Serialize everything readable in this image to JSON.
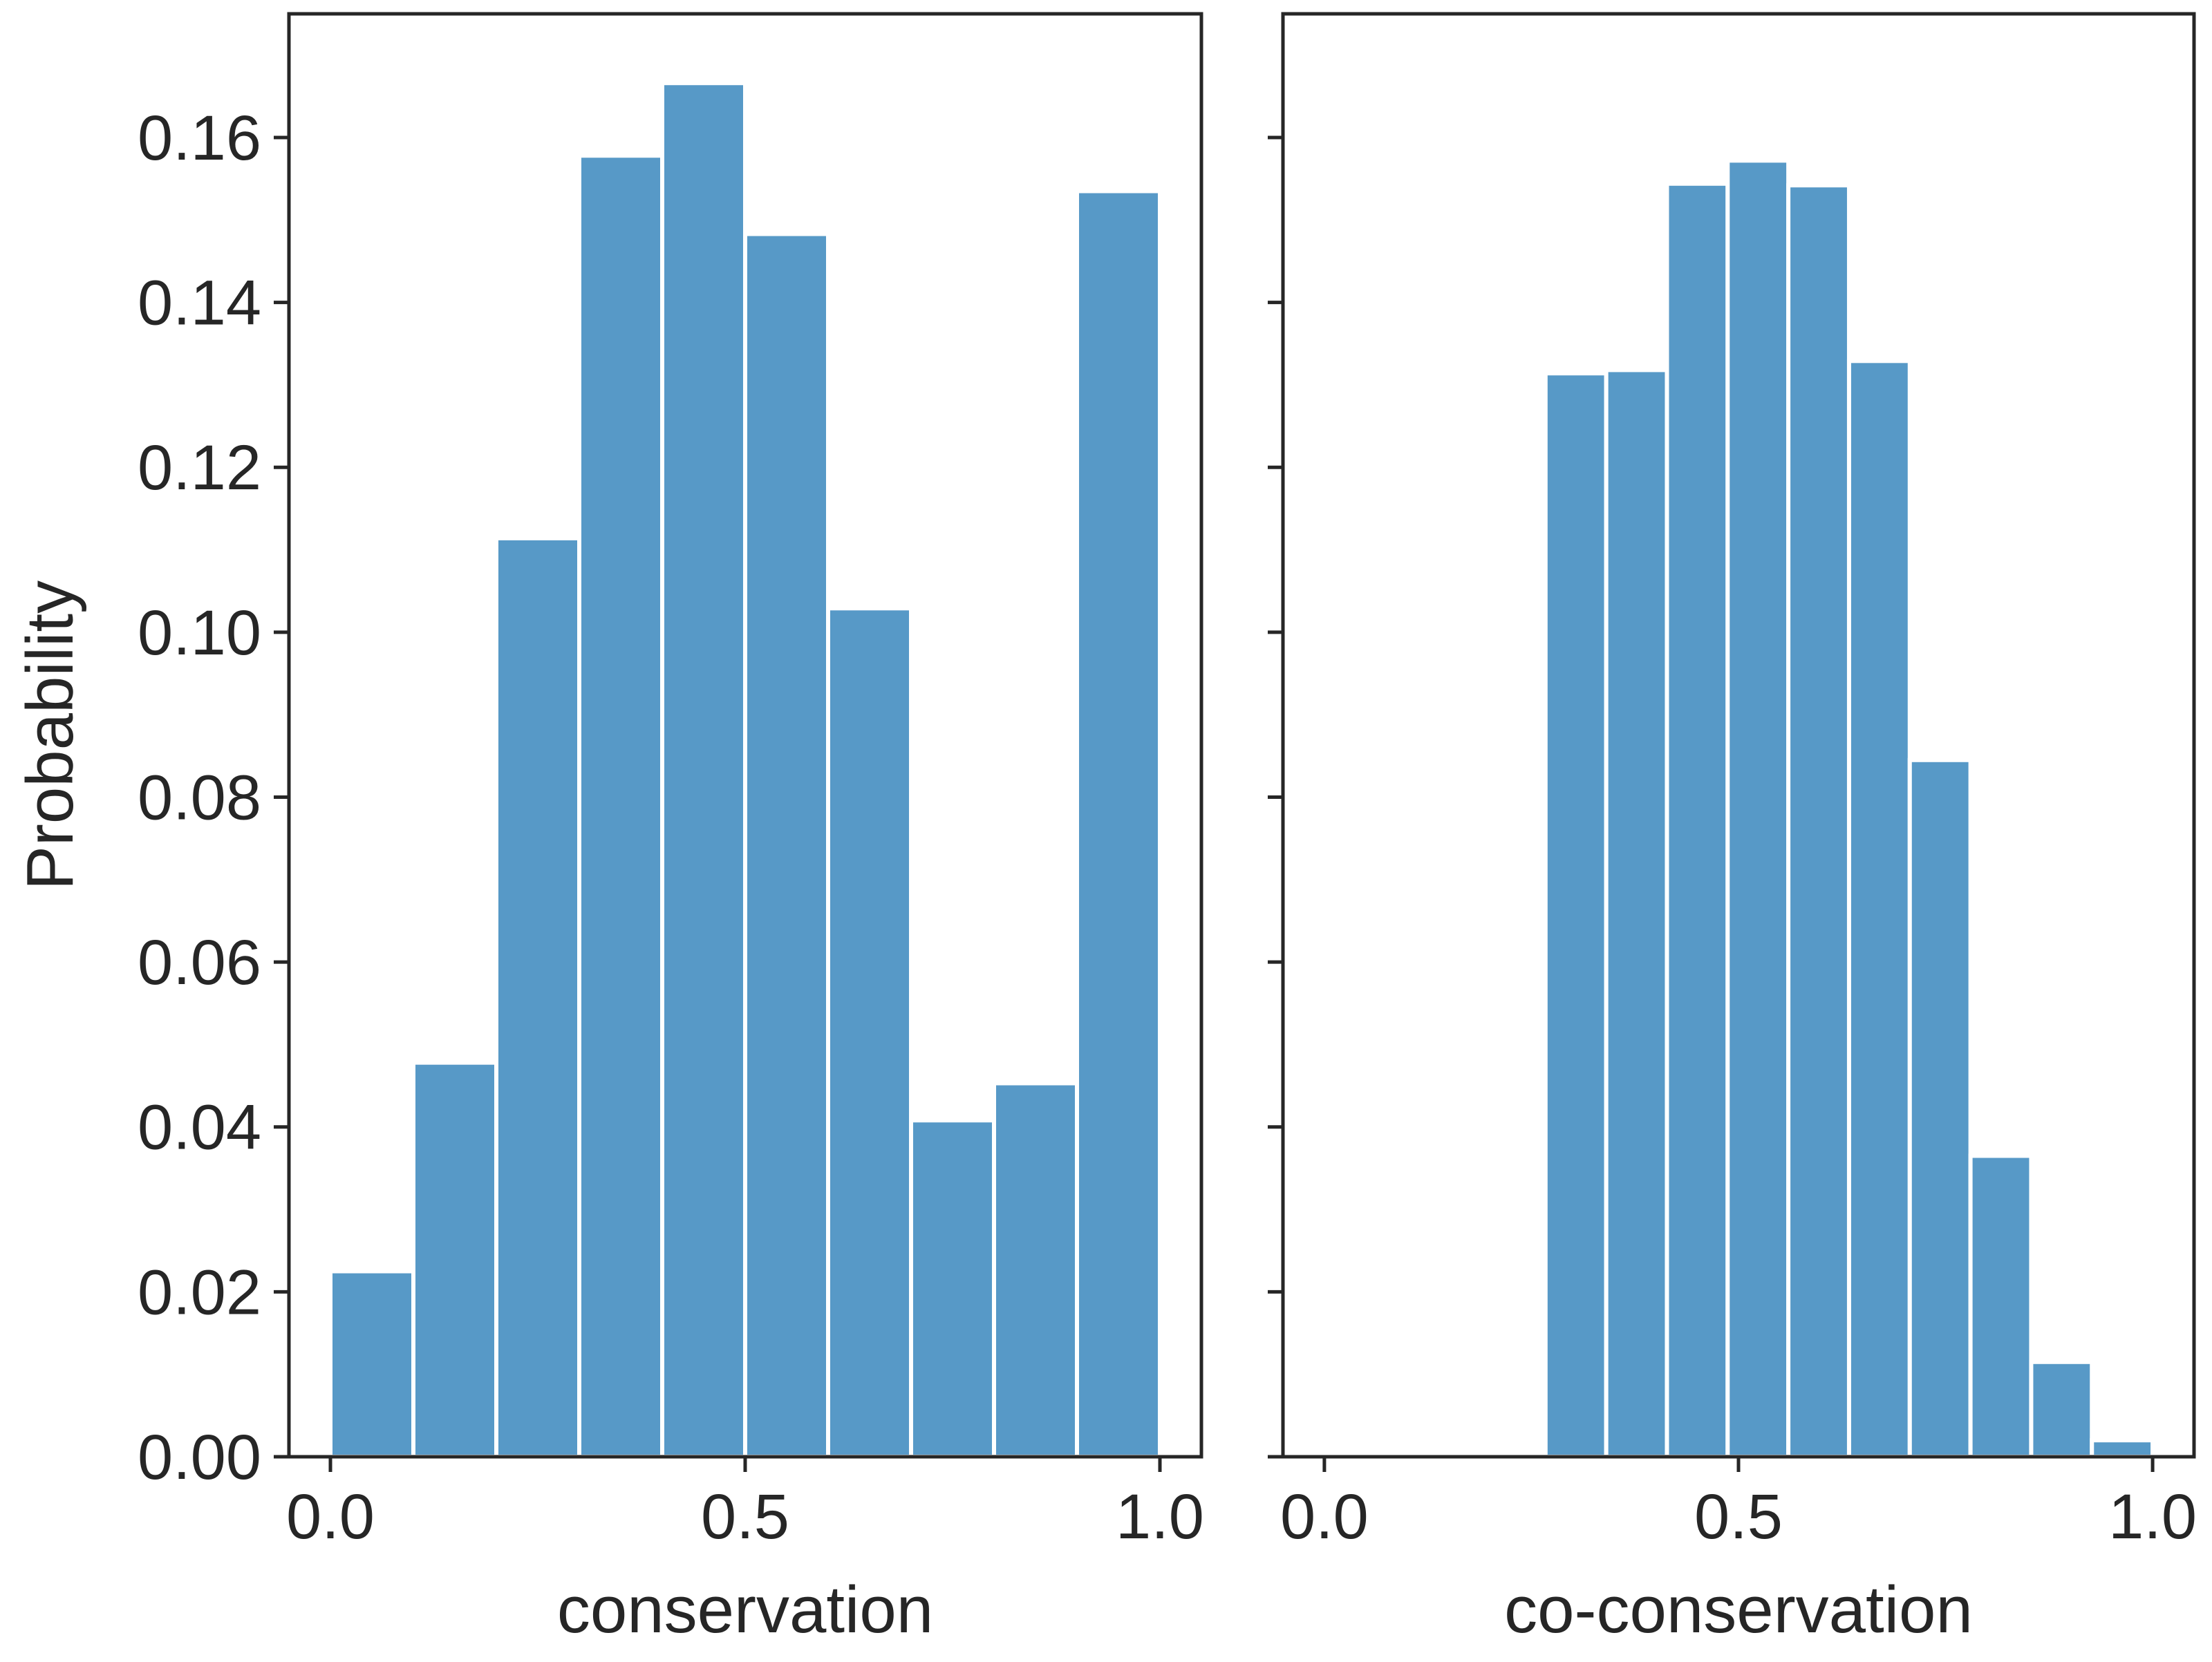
{
  "colors": {
    "bar_fill": "#5799c7",
    "bar_edge": "#ffffff",
    "axis": "#262626",
    "background": "#ffffff"
  },
  "chart_data": [
    {
      "type": "bar",
      "subtype": "histogram",
      "xlabel": "conservation",
      "ylabel": "Probability",
      "xlim": [
        -0.05,
        1.05
      ],
      "ylim": [
        0,
        0.175
      ],
      "xticks": [
        0.0,
        0.5,
        1.0
      ],
      "xtick_labels": [
        "0.0",
        "0.5",
        "1.0"
      ],
      "yticks": [
        0.0,
        0.02,
        0.04,
        0.06,
        0.08,
        0.1,
        0.12,
        0.14,
        0.16
      ],
      "ytick_labels": [
        "0.00",
        "0.02",
        "0.04",
        "0.06",
        "0.08",
        "0.10",
        "0.12",
        "0.14",
        "0.16"
      ],
      "bin_edges": [
        0.0,
        0.1,
        0.2,
        0.3,
        0.4,
        0.5,
        0.6,
        0.7,
        0.8,
        0.9,
        1.0
      ],
      "values": [
        0.0225,
        0.0478,
        0.1114,
        0.1578,
        0.1666,
        0.1483,
        0.1029,
        0.0408,
        0.0453,
        0.1535
      ],
      "grid": false
    },
    {
      "type": "bar",
      "subtype": "histogram",
      "xlabel": "co-conservation",
      "ylabel": "",
      "xlim": [
        -0.05,
        1.05
      ],
      "ylim": [
        0,
        0.175
      ],
      "xticks": [
        0.0,
        0.5,
        1.0
      ],
      "xtick_labels": [
        "0.0",
        "0.5",
        "1.0"
      ],
      "yticks": [
        0.0,
        0.02,
        0.04,
        0.06,
        0.08,
        0.1,
        0.12,
        0.14,
        0.16
      ],
      "ytick_labels": [],
      "bin_edges": [
        0.267,
        0.3403,
        0.4136,
        0.4869,
        0.5602,
        0.6335,
        0.7068,
        0.7801,
        0.8534,
        0.9267,
        1.0
      ],
      "values": [
        0.1314,
        0.1318,
        0.1544,
        0.1572,
        0.1542,
        0.1329,
        0.0845,
        0.0365,
        0.0115,
        0.002
      ],
      "grid": false
    }
  ]
}
